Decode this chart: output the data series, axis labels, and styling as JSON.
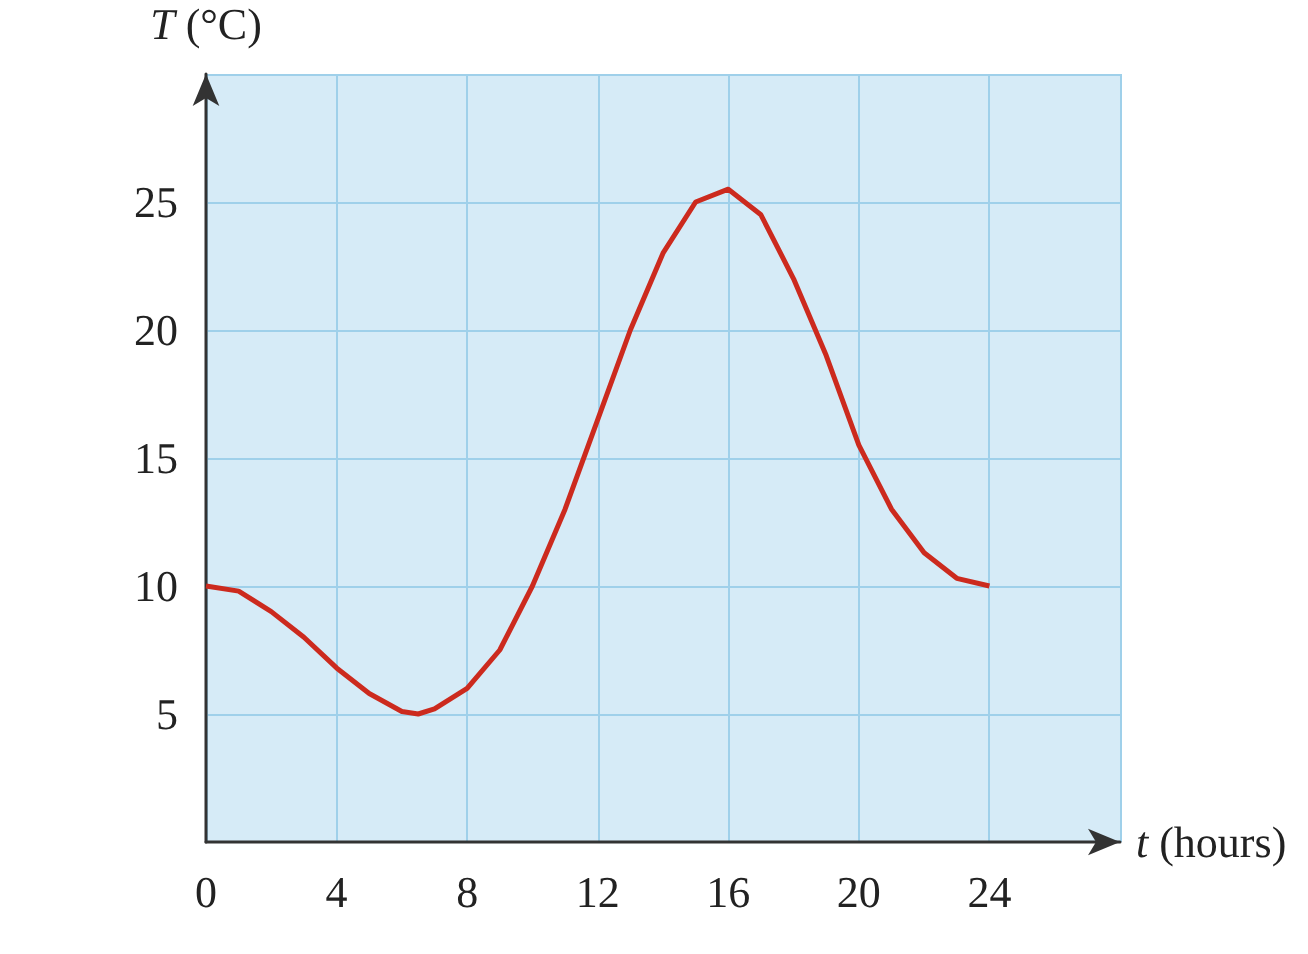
{
  "chart_data": {
    "type": "line",
    "xlabel": "t (hours)",
    "ylabel": "T (°C)",
    "xlim": [
      0,
      28
    ],
    "ylim": [
      0,
      30
    ],
    "xticks": [
      0,
      4,
      8,
      12,
      16,
      20,
      24,
      {
        "value": 28,
        "label": null
      }
    ],
    "yticks": [
      5,
      10,
      15,
      20,
      25,
      {
        "value": 30,
        "label": null
      }
    ],
    "grid": true,
    "marker": "none",
    "line_style": "solid",
    "series": [
      {
        "color": "#cc2a1e",
        "x": [
          0,
          1,
          2,
          3,
          4,
          5,
          6,
          6.5,
          7,
          8,
          9,
          10,
          11,
          12,
          13,
          14,
          15,
          16,
          17,
          18,
          19,
          20,
          21,
          22,
          23,
          24
        ],
        "values": [
          10,
          9.8,
          9,
          8,
          6.8,
          5.8,
          5.1,
          5,
          5.2,
          6,
          7.5,
          10,
          13,
          16.5,
          20,
          23,
          25,
          25.5,
          24.5,
          22,
          19,
          15.5,
          13,
          11.3,
          10.3,
          10
        ]
      }
    ]
  }
}
